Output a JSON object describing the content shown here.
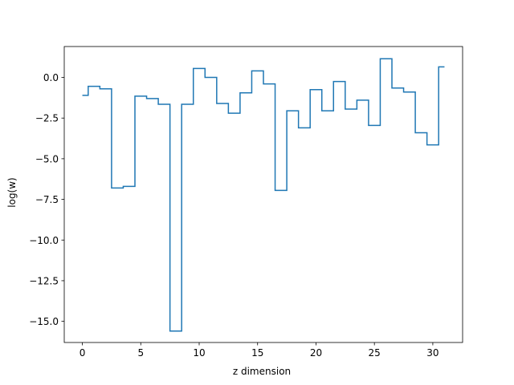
{
  "chart_data": {
    "type": "line",
    "drawstyle": "steps-mid",
    "title": "",
    "xlabel": "z dimension",
    "ylabel": "log(w)",
    "xlim": [
      -1.55,
      32.55
    ],
    "ylim": [
      -16.3,
      1.9
    ],
    "xticks": [
      0,
      5,
      10,
      15,
      20,
      25,
      30
    ],
    "xtick_labels": [
      "0",
      "5",
      "10",
      "15",
      "20",
      "25",
      "30"
    ],
    "yticks": [
      -15.0,
      -12.5,
      -10.0,
      -7.5,
      -5.0,
      -2.5,
      0.0
    ],
    "ytick_labels": [
      "−15.0",
      "−12.5",
      "−10.0",
      "−7.5",
      "−5.0",
      "−2.5",
      "0.0"
    ],
    "grid": false,
    "series": [
      {
        "color": "#1f77b4",
        "x": [
          0,
          1,
          2,
          3,
          4,
          5,
          6,
          7,
          8,
          9,
          10,
          11,
          12,
          13,
          14,
          15,
          16,
          17,
          18,
          19,
          20,
          21,
          22,
          23,
          24,
          25,
          26,
          27,
          28,
          29,
          30,
          31
        ],
        "values": [
          -1.1,
          -0.55,
          -0.7,
          -6.8,
          -6.7,
          -1.15,
          -1.3,
          -1.65,
          -15.6,
          -1.65,
          0.55,
          0.0,
          -1.6,
          -2.2,
          -0.95,
          0.4,
          -0.4,
          -6.95,
          -2.05,
          -3.1,
          -0.75,
          -2.05,
          -0.25,
          -1.95,
          -1.4,
          -2.95,
          1.15,
          -0.65,
          -0.9,
          -3.4,
          -4.15,
          0.65
        ]
      }
    ]
  }
}
